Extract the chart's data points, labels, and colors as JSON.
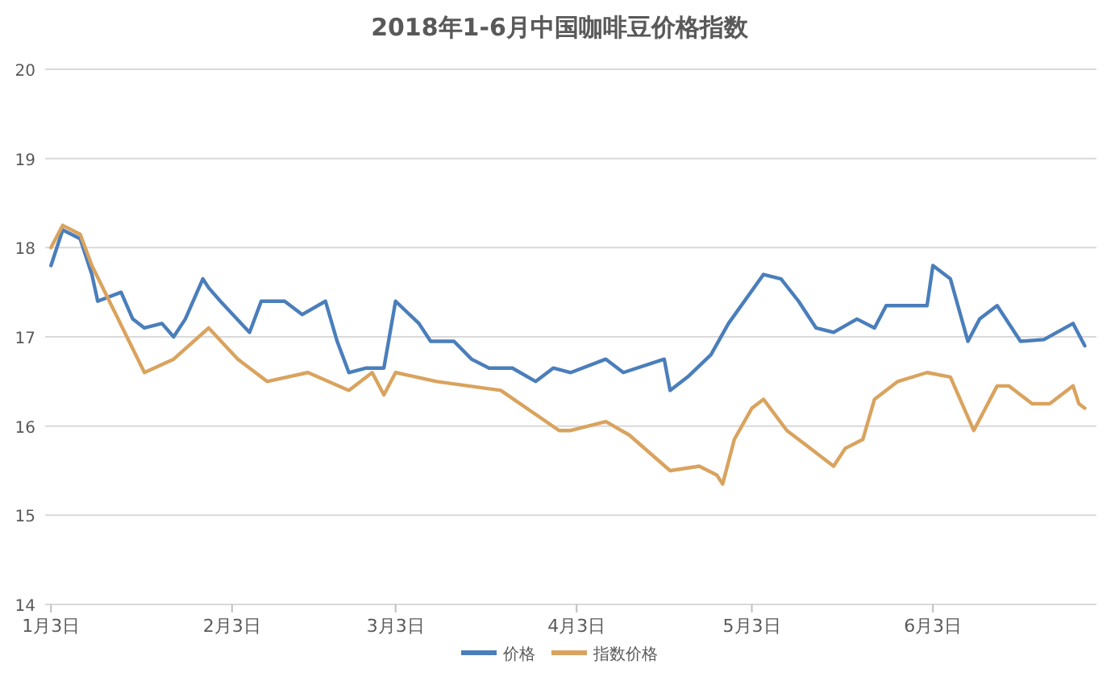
{
  "chart_data": {
    "type": "line",
    "title": "2018年1-6月中国咖啡豆价格指数",
    "ylim": [
      14,
      20
    ],
    "yticks": [
      14,
      15,
      16,
      17,
      18,
      19,
      20
    ],
    "xlim": [
      "2018-01-02",
      "2018-07-01"
    ],
    "xticks": [
      {
        "value": "2018-01-03",
        "label": "1月3日"
      },
      {
        "value": "2018-02-03",
        "label": "2月3日"
      },
      {
        "value": "2018-03-03",
        "label": "3月3日"
      },
      {
        "value": "2018-04-03",
        "label": "4月3日"
      },
      {
        "value": "2018-05-03",
        "label": "5月3日"
      },
      {
        "value": "2018-06-03",
        "label": "6月3日"
      }
    ],
    "grid": "y",
    "legend": "bottom",
    "marker": "none",
    "line_style": "solid",
    "series": [
      {
        "name": "价格",
        "color": "#4a7ebb",
        "x": [
          "2018-01-03",
          "2018-01-05",
          "2018-01-08",
          "2018-01-10",
          "2018-01-11",
          "2018-01-15",
          "2018-01-17",
          "2018-01-19",
          "2018-01-22",
          "2018-01-24",
          "2018-01-26",
          "2018-01-29",
          "2018-01-30",
          "2018-02-01",
          "2018-02-06",
          "2018-02-08",
          "2018-02-12",
          "2018-02-15",
          "2018-02-19",
          "2018-02-21",
          "2018-02-23",
          "2018-02-26",
          "2018-03-01",
          "2018-03-03",
          "2018-03-07",
          "2018-03-09",
          "2018-03-13",
          "2018-03-16",
          "2018-03-19",
          "2018-03-23",
          "2018-03-27",
          "2018-03-30",
          "2018-04-02",
          "2018-04-08",
          "2018-04-11",
          "2018-04-18",
          "2018-04-19",
          "2018-04-22",
          "2018-04-26",
          "2018-04-29",
          "2018-05-05",
          "2018-05-08",
          "2018-05-11",
          "2018-05-14",
          "2018-05-17",
          "2018-05-21",
          "2018-05-24",
          "2018-05-26",
          "2018-06-02",
          "2018-06-03",
          "2018-06-06",
          "2018-06-09",
          "2018-06-11",
          "2018-06-14",
          "2018-06-18",
          "2018-06-22",
          "2018-06-27",
          "2018-06-29"
        ],
        "values": [
          17.8,
          18.2,
          18.1,
          17.7,
          17.4,
          17.5,
          17.2,
          17.1,
          17.15,
          17.0,
          17.2,
          17.65,
          17.55,
          17.4,
          17.05,
          17.4,
          17.4,
          17.25,
          17.4,
          16.95,
          16.6,
          16.65,
          16.65,
          17.4,
          17.15,
          16.95,
          16.95,
          16.75,
          16.65,
          16.65,
          16.5,
          16.65,
          16.6,
          16.75,
          16.6,
          16.75,
          16.4,
          16.55,
          16.8,
          17.15,
          17.7,
          17.65,
          17.4,
          17.1,
          17.05,
          17.2,
          17.1,
          17.35,
          17.35,
          17.8,
          17.65,
          16.95,
          17.2,
          17.35,
          16.95,
          16.97,
          17.15,
          16.9
        ]
      },
      {
        "name": "指数价格",
        "color": "#d9a35e",
        "x": [
          "2018-01-03",
          "2018-01-05",
          "2018-01-08",
          "2018-01-10",
          "2018-01-13",
          "2018-01-16",
          "2018-01-19",
          "2018-01-24",
          "2018-01-30",
          "2018-02-04",
          "2018-02-09",
          "2018-02-16",
          "2018-02-23",
          "2018-02-27",
          "2018-03-01",
          "2018-03-03",
          "2018-03-10",
          "2018-03-21",
          "2018-03-31",
          "2018-04-02",
          "2018-04-08",
          "2018-04-12",
          "2018-04-19",
          "2018-04-24",
          "2018-04-27",
          "2018-04-28",
          "2018-04-30",
          "2018-05-03",
          "2018-05-05",
          "2018-05-09",
          "2018-05-12",
          "2018-05-17",
          "2018-05-19",
          "2018-05-22",
          "2018-05-24",
          "2018-05-28",
          "2018-06-02",
          "2018-06-06",
          "2018-06-10",
          "2018-06-14",
          "2018-06-16",
          "2018-06-20",
          "2018-06-23",
          "2018-06-27",
          "2018-06-28",
          "2018-06-29"
        ],
        "values": [
          18.0,
          18.25,
          18.15,
          17.8,
          17.4,
          17.0,
          16.6,
          16.75,
          17.1,
          16.75,
          16.5,
          16.6,
          16.4,
          16.6,
          16.35,
          16.6,
          16.5,
          16.4,
          15.95,
          15.95,
          16.05,
          15.9,
          15.5,
          15.55,
          15.45,
          15.35,
          15.85,
          16.2,
          16.3,
          15.95,
          15.8,
          15.55,
          15.75,
          15.85,
          16.3,
          16.5,
          16.6,
          16.55,
          15.95,
          16.45,
          16.45,
          16.25,
          16.25,
          16.45,
          16.25,
          16.2
        ]
      }
    ]
  }
}
